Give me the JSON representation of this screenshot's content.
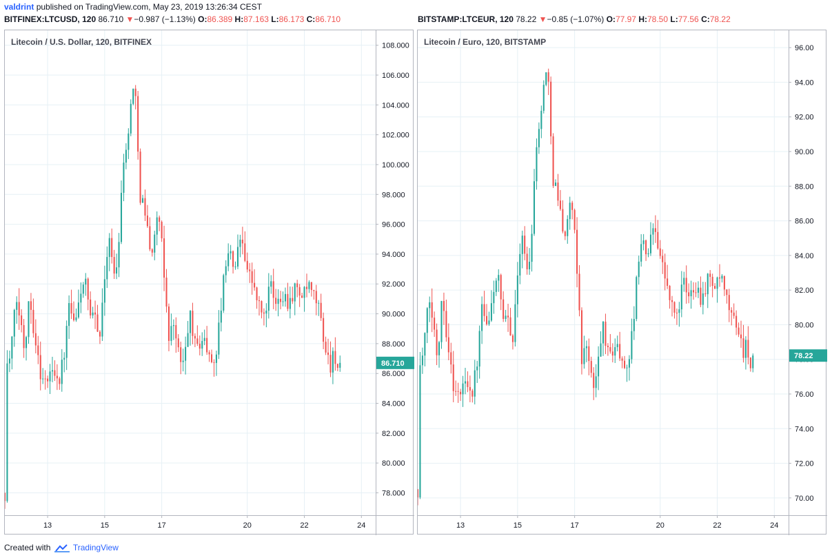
{
  "header": {
    "username": "valdrint",
    "published_text": "published on TradingView.com, May 23, 2019 13:26:34 CEST"
  },
  "left_symbol": {
    "symbol": "BITFINEX:LTCUSD, 120",
    "price": "86.710",
    "change": "−0.987 (−1.13%)",
    "o_label": "O:",
    "o": "86.389",
    "h_label": "H:",
    "h": "87.163",
    "l_label": "L:",
    "l": "86.173",
    "c_label": "C:",
    "c": "86.710"
  },
  "right_symbol": {
    "symbol": "BITSTAMP:LTCEUR, 120",
    "price": "78.22",
    "change": "−0.85 (−1.07%)",
    "o_label": "O:",
    "o": "77.97",
    "h_label": "H:",
    "h": "78.50",
    "l_label": "L:",
    "l": "77.56",
    "c_label": "C:",
    "c": "78.22"
  },
  "colors": {
    "up": "#26a69a",
    "down": "#ef5350",
    "grid": "#e6f0f5",
    "axis_line": "#b2b5be",
    "tag_bg": "#26a69a"
  },
  "footer": {
    "created_with": "Created with",
    "brand": "TradingView"
  },
  "chart_data": [
    {
      "type": "candlestick",
      "title": "Litecoin / U.S. Dollar, 120, BITFINEX",
      "ylim": [
        76.5,
        109.0
      ],
      "y_ticks": [
        "78.000",
        "80.000",
        "82.000",
        "84.000",
        "86.000",
        "88.000",
        "90.000",
        "92.000",
        "94.000",
        "96.000",
        "98.000",
        "100.000",
        "102.000",
        "104.000",
        "106.000",
        "108.000"
      ],
      "x_ticks": [
        {
          "label": "13",
          "day": 13
        },
        {
          "label": "15",
          "day": 15
        },
        {
          "label": "17",
          "day": 17
        },
        {
          "label": "20",
          "day": 20
        },
        {
          "label": "22",
          "day": 22
        },
        {
          "label": "24",
          "day": 24
        }
      ],
      "xlim": [
        11.5,
        24.5
      ],
      "last_price_label": "86.710",
      "last_price": 86.71,
      "keypoints": [
        [
          11.5,
          78.0
        ],
        [
          11.58,
          86.5
        ],
        [
          11.7,
          87.2
        ],
        [
          11.9,
          91.0
        ],
        [
          12.05,
          89.5
        ],
        [
          12.2,
          87.5
        ],
        [
          12.35,
          91.5
        ],
        [
          12.55,
          88.5
        ],
        [
          12.75,
          86.0
        ],
        [
          12.95,
          85.3
        ],
        [
          13.2,
          86.5
        ],
        [
          13.4,
          85.5
        ],
        [
          13.6,
          87.5
        ],
        [
          13.75,
          90.5
        ],
        [
          13.95,
          89.0
        ],
        [
          14.15,
          91.5
        ],
        [
          14.3,
          92.4
        ],
        [
          14.5,
          89.5
        ],
        [
          14.7,
          89.8
        ],
        [
          14.85,
          88.5
        ],
        [
          15.0,
          92.5
        ],
        [
          15.15,
          95.5
        ],
        [
          15.3,
          92.5
        ],
        [
          15.45,
          93.5
        ],
        [
          15.65,
          100.5
        ],
        [
          15.8,
          101.0
        ],
        [
          15.95,
          105.5
        ],
        [
          16.1,
          104.0
        ],
        [
          16.25,
          98.0
        ],
        [
          16.4,
          97.0
        ],
        [
          16.55,
          95.0
        ],
        [
          16.7,
          94.0
        ],
        [
          16.85,
          97.0
        ],
        [
          17.0,
          94.5
        ],
        [
          17.15,
          91.0
        ],
        [
          17.25,
          88.5
        ],
        [
          17.45,
          89.5
        ],
        [
          17.65,
          86.5
        ],
        [
          17.8,
          87.0
        ],
        [
          18.0,
          90.0
        ],
        [
          18.2,
          87.5
        ],
        [
          18.45,
          88.5
        ],
        [
          18.7,
          86.8
        ],
        [
          18.9,
          87.2
        ],
        [
          19.05,
          90.0
        ],
        [
          19.3,
          94.5
        ],
        [
          19.55,
          93.0
        ],
        [
          19.8,
          95.5
        ],
        [
          20.0,
          93.0
        ],
        [
          20.2,
          92.0
        ],
        [
          20.4,
          90.5
        ],
        [
          20.6,
          89.8
        ],
        [
          20.8,
          92.0
        ],
        [
          21.0,
          90.5
        ],
        [
          21.2,
          91.5
        ],
        [
          21.45,
          90.8
        ],
        [
          21.7,
          91.8
        ],
        [
          21.95,
          91.0
        ],
        [
          22.1,
          91.8
        ],
        [
          22.3,
          91.2
        ],
        [
          22.5,
          90.5
        ],
        [
          22.7,
          88.0
        ],
        [
          22.9,
          86.5
        ],
        [
          23.05,
          87.5
        ],
        [
          23.2,
          86.0
        ],
        [
          23.3,
          86.71
        ]
      ]
    },
    {
      "type": "candlestick",
      "title": "Litecoin / Euro, 120, BITSTAMP",
      "ylim": [
        69.0,
        97.0
      ],
      "y_ticks": [
        "70.00",
        "72.00",
        "74.00",
        "76.00",
        "78.00",
        "80.00",
        "82.00",
        "84.00",
        "86.00",
        "88.00",
        "90.00",
        "92.00",
        "94.00",
        "96.00"
      ],
      "x_ticks": [
        {
          "label": "13",
          "day": 13
        },
        {
          "label": "15",
          "day": 15
        },
        {
          "label": "17",
          "day": 17
        },
        {
          "label": "20",
          "day": 20
        },
        {
          "label": "22",
          "day": 22
        },
        {
          "label": "24",
          "day": 24
        }
      ],
      "xlim": [
        11.5,
        24.5
      ],
      "last_price_label": "78.22",
      "last_price": 78.22,
      "keypoints": [
        [
          11.5,
          70.5
        ],
        [
          11.58,
          77.5
        ],
        [
          11.7,
          78.5
        ],
        [
          11.9,
          81.5
        ],
        [
          12.05,
          80.0
        ],
        [
          12.2,
          78.0
        ],
        [
          12.35,
          82.0
        ],
        [
          12.55,
          79.0
        ],
        [
          12.75,
          76.5
        ],
        [
          12.95,
          75.8
        ],
        [
          13.2,
          77.0
        ],
        [
          13.4,
          76.0
        ],
        [
          13.6,
          78.0
        ],
        [
          13.75,
          81.0
        ],
        [
          13.95,
          79.5
        ],
        [
          14.15,
          82.0
        ],
        [
          14.3,
          83.0
        ],
        [
          14.5,
          80.0
        ],
        [
          14.7,
          80.3
        ],
        [
          14.85,
          79.0
        ],
        [
          15.0,
          83.0
        ],
        [
          15.15,
          85.5
        ],
        [
          15.3,
          83.0
        ],
        [
          15.45,
          84.0
        ],
        [
          15.65,
          90.5
        ],
        [
          15.8,
          91.5
        ],
        [
          15.95,
          95.0
        ],
        [
          16.1,
          93.5
        ],
        [
          16.25,
          88.5
        ],
        [
          16.4,
          87.5
        ],
        [
          16.55,
          86.0
        ],
        [
          16.7,
          85.0
        ],
        [
          16.85,
          87.5
        ],
        [
          17.0,
          85.0
        ],
        [
          17.15,
          81.5
        ],
        [
          17.25,
          78.0
        ],
        [
          17.45,
          79.0
        ],
        [
          17.65,
          76.0
        ],
        [
          17.8,
          77.5
        ],
        [
          18.0,
          80.0
        ],
        [
          18.2,
          78.0
        ],
        [
          18.45,
          79.0
        ],
        [
          18.7,
          77.5
        ],
        [
          18.9,
          78.0
        ],
        [
          19.05,
          80.0
        ],
        [
          19.3,
          85.0
        ],
        [
          19.55,
          84.0
        ],
        [
          19.8,
          86.0
        ],
        [
          20.0,
          84.0
        ],
        [
          20.2,
          82.5
        ],
        [
          20.4,
          81.0
        ],
        [
          20.6,
          80.5
        ],
        [
          20.8,
          82.5
        ],
        [
          21.0,
          81.5
        ],
        [
          21.2,
          82.5
        ],
        [
          21.45,
          81.5
        ],
        [
          21.7,
          82.8
        ],
        [
          21.95,
          82.0
        ],
        [
          22.1,
          82.8
        ],
        [
          22.3,
          81.5
        ],
        [
          22.5,
          80.5
        ],
        [
          22.7,
          80.0
        ],
        [
          22.9,
          78.5
        ],
        [
          23.05,
          79.0
        ],
        [
          23.2,
          77.0
        ],
        [
          23.3,
          78.22
        ]
      ]
    }
  ]
}
